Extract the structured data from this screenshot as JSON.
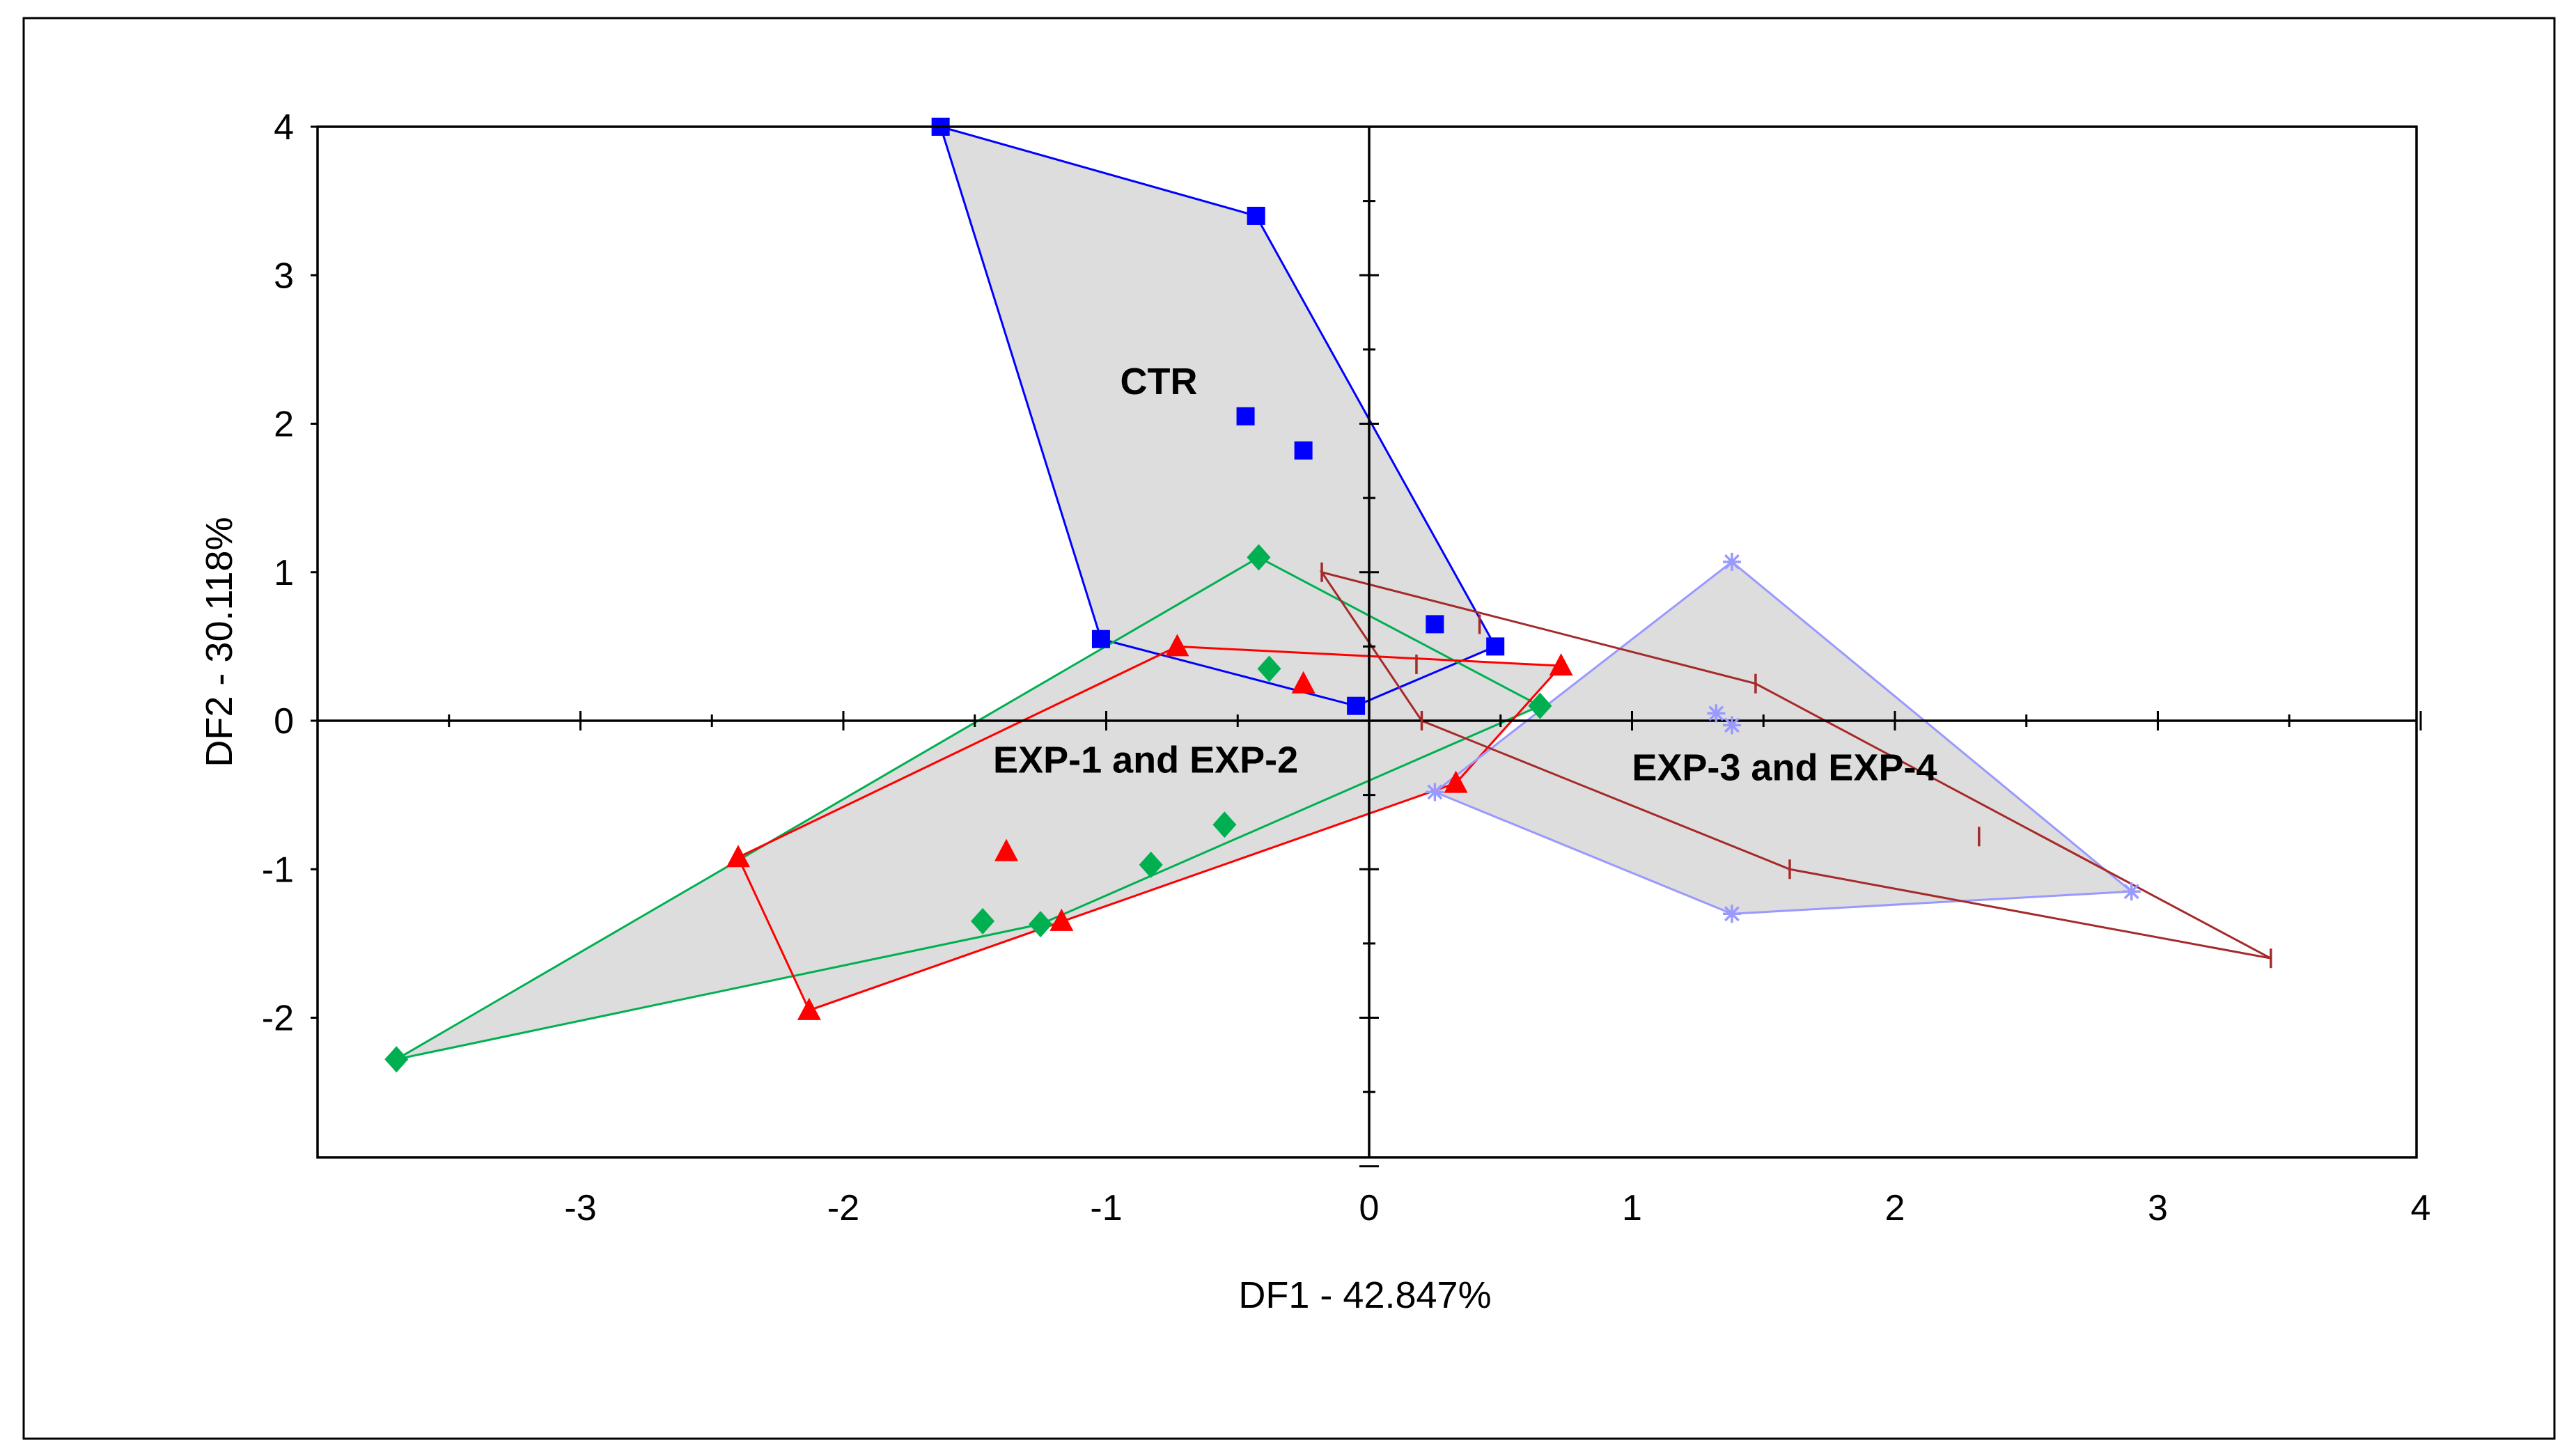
{
  "chart_data": {
    "type": "scatter",
    "xlabel": "DF1 - 42.847%",
    "ylabel": "DF2 - 30.118%",
    "xlim": [
      -4,
      4
    ],
    "ylim": [
      -3,
      4
    ],
    "xticks": [
      -3,
      -2,
      -1,
      0,
      1,
      2,
      3,
      4
    ],
    "yticks": [
      -2,
      -1,
      0,
      1,
      2,
      3,
      4
    ],
    "grid": false,
    "group_labels": [
      {
        "text": "CTR",
        "x": -0.8,
        "y": 2.2
      },
      {
        "text": "EXP-1 and EXP-2",
        "x": -0.85,
        "y": -0.35
      },
      {
        "text": "EXP-3 and EXP-4",
        "x": 1.58,
        "y": -0.4
      }
    ],
    "series": [
      {
        "name": "CTR",
        "marker": "square",
        "color": "#0000FF",
        "hull_fill": "#DDDDDD",
        "points": [
          [
            -1.63,
            4.0
          ],
          [
            -0.43,
            3.4
          ],
          [
            -0.47,
            2.05
          ],
          [
            -0.25,
            1.82
          ],
          [
            0.25,
            0.65
          ],
          [
            0.48,
            0.5
          ],
          [
            -1.02,
            0.55
          ],
          [
            -0.05,
            0.1
          ]
        ],
        "hull": [
          [
            -1.63,
            4.0
          ],
          [
            -0.43,
            3.4
          ],
          [
            0.48,
            0.5
          ],
          [
            -0.05,
            0.1
          ],
          [
            -1.02,
            0.55
          ]
        ]
      },
      {
        "name": "EXP-1",
        "marker": "diamond",
        "color": "#00B050",
        "hull_fill": "#DDDDDD",
        "points": [
          [
            -3.7,
            -2.28
          ],
          [
            -0.42,
            1.1
          ],
          [
            -0.38,
            0.35
          ],
          [
            0.65,
            0.1
          ],
          [
            -0.55,
            -0.7
          ],
          [
            -0.83,
            -0.97
          ],
          [
            -1.47,
            -1.35
          ],
          [
            -1.25,
            -1.37
          ]
        ],
        "hull": [
          [
            -3.7,
            -2.28
          ],
          [
            -0.42,
            1.1
          ],
          [
            0.65,
            0.1
          ],
          [
            -1.25,
            -1.37
          ]
        ]
      },
      {
        "name": "EXP-2",
        "marker": "triangle",
        "color": "#FF0000",
        "hull_fill": "#DDDDDD",
        "points": [
          [
            -2.4,
            -0.92
          ],
          [
            -0.73,
            0.5
          ],
          [
            -0.25,
            0.25
          ],
          [
            0.73,
            0.37
          ],
          [
            0.33,
            -0.42
          ],
          [
            -1.38,
            -0.88
          ],
          [
            -1.17,
            -1.35
          ],
          [
            -2.13,
            -1.95
          ]
        ],
        "hull": [
          [
            -2.4,
            -0.92
          ],
          [
            -0.73,
            0.5
          ],
          [
            0.73,
            0.37
          ],
          [
            0.33,
            -0.42
          ],
          [
            -2.13,
            -1.95
          ]
        ]
      },
      {
        "name": "EXP-3",
        "marker": "star",
        "color": "#9999FF",
        "hull_fill": "#DDDDDD",
        "points": [
          [
            1.38,
            1.07
          ],
          [
            1.32,
            0.05
          ],
          [
            1.38,
            -0.03
          ],
          [
            2.9,
            -1.15
          ],
          [
            1.38,
            -1.3
          ],
          [
            0.25,
            -0.48
          ]
        ],
        "hull": [
          [
            0.25,
            -0.48
          ],
          [
            1.38,
            1.07
          ],
          [
            2.9,
            -1.15
          ],
          [
            1.38,
            -1.3
          ]
        ]
      },
      {
        "name": "EXP-4",
        "marker": "dash",
        "color": "#A52A2A",
        "hull_fill": "none",
        "points": [
          [
            -0.18,
            1.0
          ],
          [
            0.42,
            0.65
          ],
          [
            0.18,
            0.38
          ],
          [
            1.47,
            0.25
          ],
          [
            0.2,
            0.0
          ],
          [
            2.32,
            -0.78
          ],
          [
            1.6,
            -1.0
          ],
          [
            3.43,
            -1.6
          ]
        ],
        "hull": [
          [
            -0.18,
            1.0
          ],
          [
            1.47,
            0.25
          ],
          [
            3.43,
            -1.6
          ],
          [
            1.6,
            -1.0
          ],
          [
            0.2,
            0.0
          ]
        ]
      }
    ]
  }
}
